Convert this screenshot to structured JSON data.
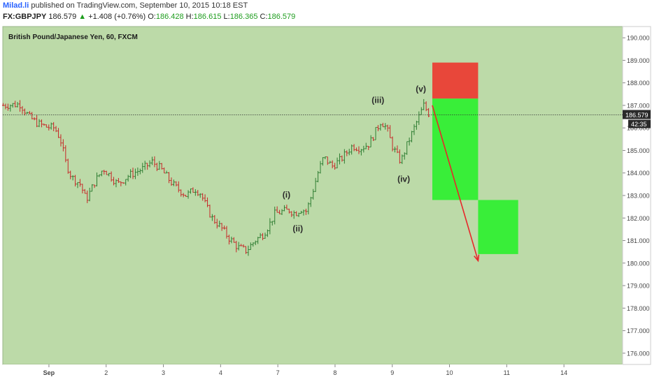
{
  "header": {
    "author": "Milad.li",
    "published": "published on TradingView.com, September 10, 2015 10:18 EST",
    "symbol": "FX:GBPJPY",
    "last": "186.579",
    "arrow": "▲",
    "change": "+1.408 (+0.76%)",
    "o_label": "O:",
    "o_value": "186.428",
    "h_label": "H:",
    "h_value": "186.615",
    "l_label": "L:",
    "l_value": "186.365",
    "c_label": "C:",
    "c_value": "186.579"
  },
  "chart_data": {
    "type": "candlestick",
    "title": "British Pound/Japanese Yen, 60, FXCM",
    "x_ticks": [
      "Sep",
      "2",
      "3",
      "4",
      "7",
      "8",
      "9",
      "10",
      "11",
      "14"
    ],
    "y_ticks": [
      "176.000",
      "177.000",
      "178.000",
      "179.000",
      "180.000",
      "181.000",
      "182.000",
      "183.000",
      "184.000",
      "185.000",
      "186.000",
      "187.000",
      "188.000",
      "189.000",
      "190.000"
    ],
    "ylim": [
      175.5,
      190.5
    ],
    "price_label": "186.579",
    "countdown_label": "42:35",
    "last_price": 186.579,
    "price_path": [
      [
        0.0,
        187.0
      ],
      [
        0.3,
        187.05
      ],
      [
        0.45,
        186.5
      ],
      [
        0.6,
        186.2
      ],
      [
        0.75,
        186.05
      ],
      [
        0.9,
        186.0
      ],
      [
        1.0,
        185.5
      ],
      [
        1.1,
        184.4
      ],
      [
        1.2,
        183.8
      ],
      [
        1.35,
        183.5
      ],
      [
        1.45,
        182.8
      ],
      [
        1.6,
        183.6
      ],
      [
        1.75,
        184.2
      ],
      [
        1.9,
        183.8
      ],
      [
        2.0,
        183.5
      ],
      [
        2.2,
        183.9
      ],
      [
        2.45,
        184.2
      ],
      [
        2.6,
        184.5
      ],
      [
        2.75,
        184.2
      ],
      [
        2.9,
        183.7
      ],
      [
        3.0,
        183.4
      ],
      [
        3.2,
        183.0
      ],
      [
        3.35,
        183.3
      ],
      [
        3.45,
        183.1
      ],
      [
        3.55,
        182.5
      ],
      [
        3.65,
        182.0
      ],
      [
        3.8,
        181.6
      ],
      [
        3.95,
        181.1
      ],
      [
        4.1,
        180.7
      ],
      [
        4.25,
        180.55
      ],
      [
        4.4,
        181.0
      ],
      [
        4.55,
        181.3
      ],
      [
        4.65,
        181.7
      ],
      [
        4.75,
        182.2
      ],
      [
        4.9,
        182.3
      ],
      [
        5.0,
        182.35
      ],
      [
        5.1,
        182.2
      ],
      [
        5.2,
        182.4
      ],
      [
        5.3,
        182.3
      ],
      [
        5.4,
        183.1
      ],
      [
        5.5,
        184.0
      ],
      [
        5.6,
        184.7
      ],
      [
        5.75,
        184.3
      ],
      [
        5.9,
        184.6
      ],
      [
        6.0,
        184.9
      ],
      [
        6.1,
        185.2
      ],
      [
        6.25,
        185.1
      ],
      [
        6.4,
        185.3
      ],
      [
        6.5,
        185.8
      ],
      [
        6.6,
        186.3
      ],
      [
        6.7,
        186.0
      ],
      [
        6.8,
        185.2
      ],
      [
        6.9,
        184.7
      ],
      [
        6.95,
        184.5
      ],
      [
        7.05,
        185.2
      ],
      [
        7.15,
        185.8
      ],
      [
        7.25,
        186.4
      ],
      [
        7.35,
        187.0
      ],
      [
        7.45,
        186.579
      ]
    ],
    "wave_labels": [
      {
        "text": "(i)",
        "x": 4.95,
        "y": 182.9
      },
      {
        "text": "(ii)",
        "x": 5.15,
        "y": 181.4
      },
      {
        "text": "(iii)",
        "x": 6.55,
        "y": 187.1
      },
      {
        "text": "(iv)",
        "x": 7.0,
        "y": 183.6
      },
      {
        "text": "(v)",
        "x": 7.3,
        "y": 187.6
      }
    ],
    "zones": [
      {
        "name": "stop",
        "color": "#e8473a",
        "x0": 7.5,
        "x1": 8.3,
        "y0": 187.3,
        "y1": 188.9
      },
      {
        "name": "target1",
        "color": "#39ee39",
        "x0": 7.5,
        "x1": 8.3,
        "y0": 182.8,
        "y1": 187.3
      },
      {
        "name": "target2",
        "color": "#39ee39",
        "x0": 8.3,
        "x1": 9.0,
        "y0": 180.4,
        "y1": 182.8
      }
    ],
    "arrow": {
      "from": [
        7.5,
        187.0
      ],
      "to": [
        8.3,
        180.1
      ],
      "color": "#e8262a"
    },
    "colors": {
      "plot_bg": "#bcdaa8",
      "up": "#2e7d32",
      "down": "#c62828",
      "price_line": "#333333",
      "price_label_bg": "#2a2a2a"
    }
  }
}
